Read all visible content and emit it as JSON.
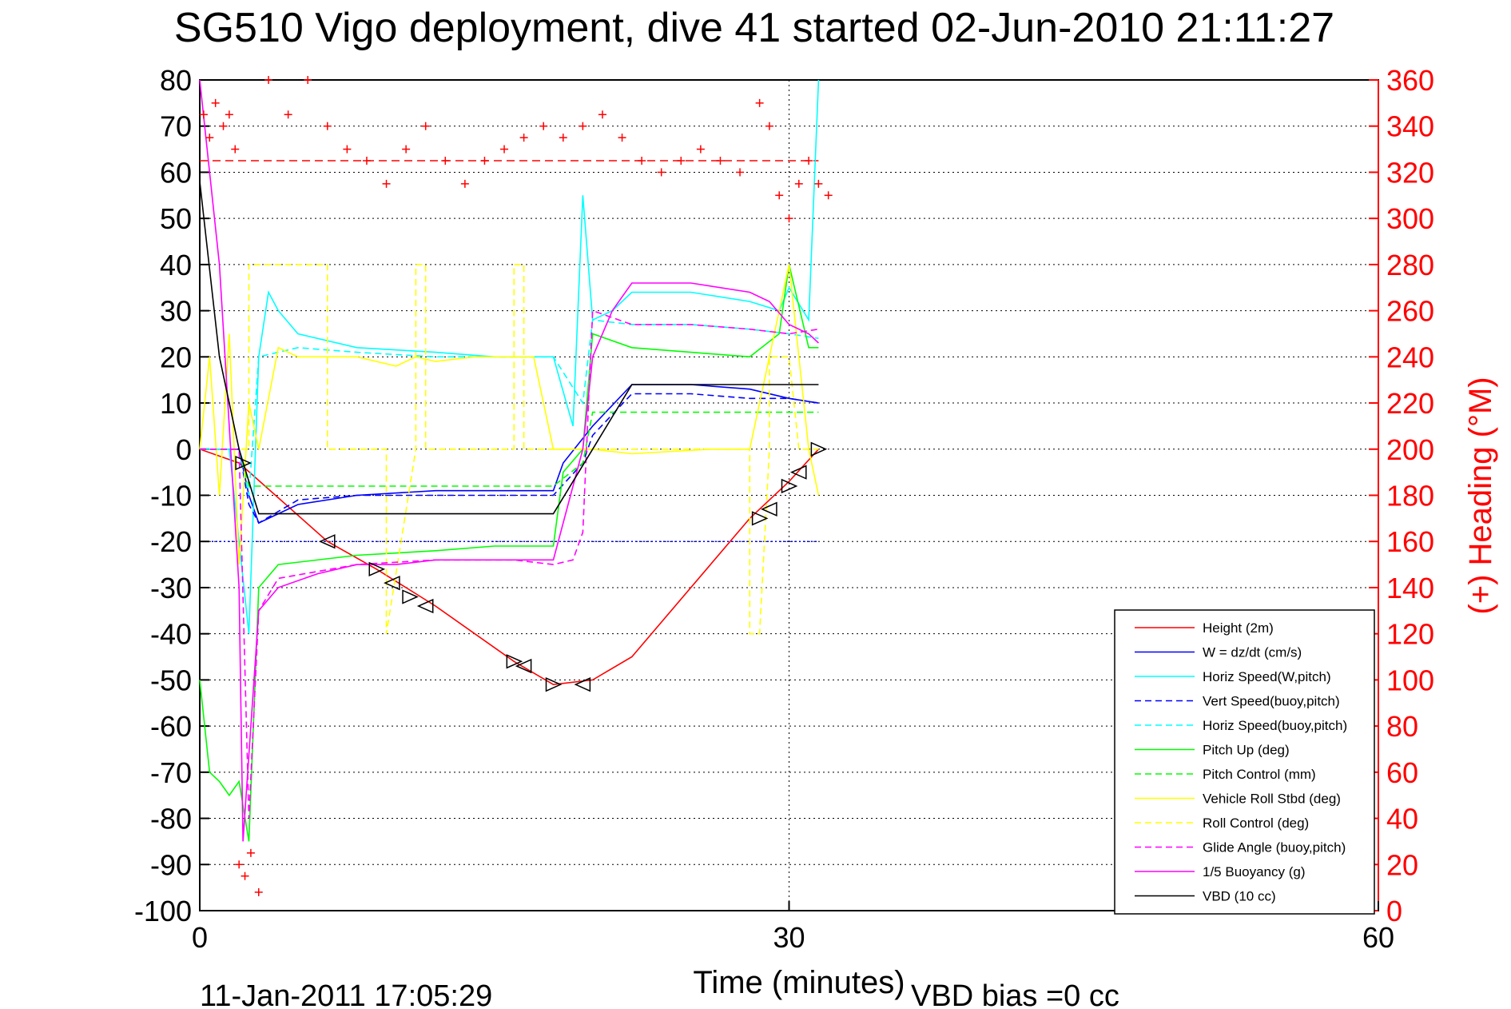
{
  "chart_data": {
    "type": "line",
    "title": "SG510 Vigo deployment, dive 41 started 02-Jun-2010 21:11:27",
    "xlabel": "Time (minutes)",
    "ylabel": "",
    "y2label": "(+) Heading (°M)",
    "footer_left": "11-Jan-2011 17:05:29",
    "footer_right": "VBD bias =0 cc",
    "xlim": [
      0,
      60
    ],
    "ylim": [
      -100,
      80
    ],
    "y2lim": [
      0,
      360
    ],
    "xticks": [
      "0",
      "30",
      "60"
    ],
    "yticks": [
      "80",
      "70",
      "60",
      "50",
      "40",
      "30",
      "20",
      "10",
      "0",
      "-10",
      "-20",
      "-30",
      "-40",
      "-50",
      "-60",
      "-70",
      "-80",
      "-90",
      "-100"
    ],
    "y2ticks": [
      "360",
      "340",
      "320",
      "300",
      "280",
      "260",
      "240",
      "220",
      "200",
      "180",
      "160",
      "140",
      "120",
      "100",
      "80",
      "60",
      "40",
      "20",
      "0"
    ],
    "grid": true,
    "legend_position": "lower-right",
    "colors": {
      "red": "#ff0000",
      "blue": "#0000ff",
      "cyan": "#00ffff",
      "green": "#00ff00",
      "yellow": "#ffff00",
      "magenta": "#ff00ff",
      "black": "#000000"
    },
    "series": [
      {
        "name": "Height (2m)",
        "color": "#ff0000",
        "dash": false,
        "x": [
          0,
          2,
          6.5,
          9,
          10.5,
          12,
          16,
          18,
          20,
          22,
          28,
          30,
          31.5
        ],
        "y": [
          0,
          -3,
          -20,
          -26,
          -30,
          -34,
          -46,
          -51,
          -50,
          -45,
          -15,
          -7,
          0
        ]
      },
      {
        "name": "W = dz/dt (cm/s)",
        "color": "#0000ff",
        "dash": false,
        "x": [
          0,
          2,
          2.5,
          3,
          5,
          8,
          12,
          15,
          18,
          18.5,
          20,
          22,
          25,
          28,
          30,
          31.5
        ],
        "y": [
          0,
          0,
          -10,
          -16,
          -12,
          -10,
          -9,
          -9,
          -9,
          -3,
          5,
          14,
          14,
          13,
          11,
          10
        ]
      },
      {
        "name": "Horiz Speed(W,pitch)",
        "color": "#00ffff",
        "dash": false,
        "x": [
          0,
          1.5,
          2,
          2.5,
          3,
          3.5,
          4,
          5,
          8,
          12,
          15,
          18,
          19,
          19.5,
          20,
          21,
          22,
          25,
          28,
          29.5,
          30,
          31,
          31.5
        ],
        "y": [
          0,
          0,
          -20,
          -40,
          20,
          34,
          30,
          25,
          22,
          21,
          20,
          20,
          5,
          55,
          28,
          30,
          34,
          34,
          32,
          30,
          35,
          28,
          80
        ]
      },
      {
        "name": "Vert Speed(buoy,pitch)",
        "color": "#0000ff",
        "dash": true,
        "x": [
          0,
          2,
          2.5,
          3,
          5,
          8,
          12,
          15,
          18,
          19.5,
          20,
          22,
          25,
          28,
          30,
          31.5
        ],
        "y": [
          0,
          0,
          -12,
          -16,
          -11,
          -10,
          -10,
          -10,
          -10,
          -3,
          3,
          12,
          12,
          11,
          11,
          10
        ]
      },
      {
        "name": "Horiz Speed(buoy,pitch)",
        "color": "#00ffff",
        "dash": true,
        "x": [
          0,
          2,
          2.5,
          3,
          5,
          8,
          12,
          15,
          18,
          19.5,
          20,
          22,
          25,
          28,
          30,
          31.5
        ],
        "y": [
          0,
          0,
          -10,
          20,
          22,
          21,
          20,
          20,
          20,
          10,
          28,
          27,
          27,
          26,
          25,
          24
        ]
      },
      {
        "name": "Pitch Up (deg)",
        "color": "#00ff00",
        "dash": false,
        "x": [
          0,
          0.5,
          1,
          1.5,
          2,
          2.5,
          3,
          4,
          8,
          12,
          15,
          18,
          18.5,
          19.5,
          20,
          22,
          25,
          28,
          29.5,
          30,
          31,
          31.5
        ],
        "y": [
          -50,
          -70,
          -72,
          -75,
          -72,
          -85,
          -30,
          -25,
          -23,
          -22,
          -21,
          -21,
          -5,
          0,
          25,
          22,
          21,
          20,
          25,
          40,
          22,
          22
        ]
      },
      {
        "name": "Pitch Control (mm)",
        "color": "#00ff00",
        "dash": true,
        "x": [
          0,
          2,
          2.5,
          8,
          15,
          18,
          19.5,
          20,
          25,
          30,
          31.5
        ],
        "y": [
          0,
          0,
          -8,
          -8,
          -8,
          -8,
          -3,
          8,
          8,
          8,
          8
        ]
      },
      {
        "name": "Vehicle Roll Stbd (deg)",
        "color": "#ffff00",
        "dash": false,
        "x": [
          0,
          0.5,
          1,
          1.5,
          2,
          2.5,
          3,
          4,
          5,
          8,
          10,
          11,
          12,
          14,
          16,
          17,
          18,
          19,
          20,
          22,
          26,
          28,
          29,
          30,
          31,
          31.5
        ],
        "y": [
          0,
          20,
          -10,
          25,
          -25,
          10,
          0,
          22,
          20,
          20,
          18,
          20,
          19,
          20,
          20,
          20,
          0,
          0,
          0,
          -1,
          0,
          0,
          20,
          40,
          0,
          -10
        ]
      },
      {
        "name": "Roll Control (deg)",
        "color": "#ffff00",
        "dash": true,
        "x": [
          0,
          2.5,
          2.5,
          6.5,
          6.5,
          8.5,
          9.5,
          9.5,
          11,
          11,
          11.5,
          11.5,
          16,
          16,
          16.5,
          16.5,
          21,
          28,
          28,
          28.5,
          29,
          29,
          30,
          30.5,
          31.5
        ],
        "y": [
          0,
          0,
          40,
          40,
          0,
          0,
          0,
          -40,
          0,
          40,
          40,
          0,
          0,
          40,
          40,
          0,
          0,
          0,
          -40,
          -40,
          0,
          20,
          20,
          0,
          0
        ]
      },
      {
        "name": "Glide Angle (buoy,pitch)",
        "color": "#ff00ff",
        "dash": true,
        "x": [
          0,
          2,
          2.5,
          3,
          4,
          8,
          12,
          16,
          18,
          19,
          19.5,
          20,
          22,
          25,
          28,
          30,
          31.5
        ],
        "y": [
          0,
          0,
          -80,
          -35,
          -28,
          -25,
          -24,
          -24,
          -25,
          -24,
          -18,
          30,
          27,
          27,
          26,
          25,
          26
        ]
      },
      {
        "name": "1/5 Buoyancy (g)",
        "color": "#ff00ff",
        "dash": false,
        "x": [
          0,
          1,
          2,
          2.2,
          3,
          4,
          6,
          8,
          10,
          12,
          15,
          18,
          19.5,
          20,
          21,
          22,
          25,
          28,
          29,
          30,
          31,
          31.5
        ],
        "y": [
          80,
          40,
          -30,
          -85,
          -35,
          -30,
          -27,
          -25,
          -25,
          -24,
          -24,
          -24,
          0,
          20,
          30,
          36,
          36,
          34,
          32,
          27,
          25,
          23
        ]
      },
      {
        "name": "VBD (10 cc)",
        "color": "#000000",
        "dash": false,
        "x": [
          0,
          1,
          2,
          3,
          8,
          15,
          18,
          20,
          22,
          25,
          30,
          31.5
        ],
        "y": [
          58,
          20,
          0,
          -14,
          -14,
          -14,
          -14,
          0,
          14,
          14,
          14,
          14
        ]
      }
    ],
    "heading_series": {
      "name": "(+) Heading (°M)",
      "color": "#ff0000",
      "marker": "+",
      "x": [
        0.2,
        0.5,
        0.8,
        1.2,
        1.5,
        1.8,
        2.0,
        2.3,
        2.6,
        3.0,
        3.5,
        4.5,
        5.5,
        6.5,
        7.5,
        8.5,
        9.5,
        10.5,
        11.5,
        12.5,
        13.5,
        14.5,
        15.5,
        16.5,
        17.5,
        18.5,
        19.5,
        20.5,
        21.5,
        22.5,
        23.5,
        24.5,
        25.5,
        26.5,
        27.5,
        28.5,
        29.0,
        29.5,
        30.0,
        30.5,
        31.0,
        31.5,
        32.0
      ],
      "y": [
        345,
        335,
        350,
        340,
        345,
        330,
        20,
        15,
        25,
        8,
        360,
        345,
        360,
        340,
        330,
        325,
        315,
        330,
        340,
        325,
        315,
        325,
        330,
        335,
        340,
        335,
        340,
        345,
        335,
        325,
        320,
        325,
        330,
        325,
        320,
        350,
        340,
        310,
        300,
        315,
        325,
        315,
        310
      ]
    },
    "markers": {
      "name": "triangles",
      "points": [
        {
          "x": 2.2,
          "y": -3
        },
        {
          "x": 6.5,
          "y": -20
        },
        {
          "x": 9,
          "y": -26
        },
        {
          "x": 9.8,
          "y": -29
        },
        {
          "x": 10.7,
          "y": -32
        },
        {
          "x": 11.5,
          "y": -34
        },
        {
          "x": 16,
          "y": -46
        },
        {
          "x": 16.5,
          "y": -47
        },
        {
          "x": 18,
          "y": -51
        },
        {
          "x": 19.5,
          "y": -51
        },
        {
          "x": 28.5,
          "y": -15
        },
        {
          "x": 29,
          "y": -13
        },
        {
          "x": 30,
          "y": -8
        },
        {
          "x": 30.5,
          "y": -5
        },
        {
          "x": 31.5,
          "y": 0
        }
      ]
    }
  }
}
